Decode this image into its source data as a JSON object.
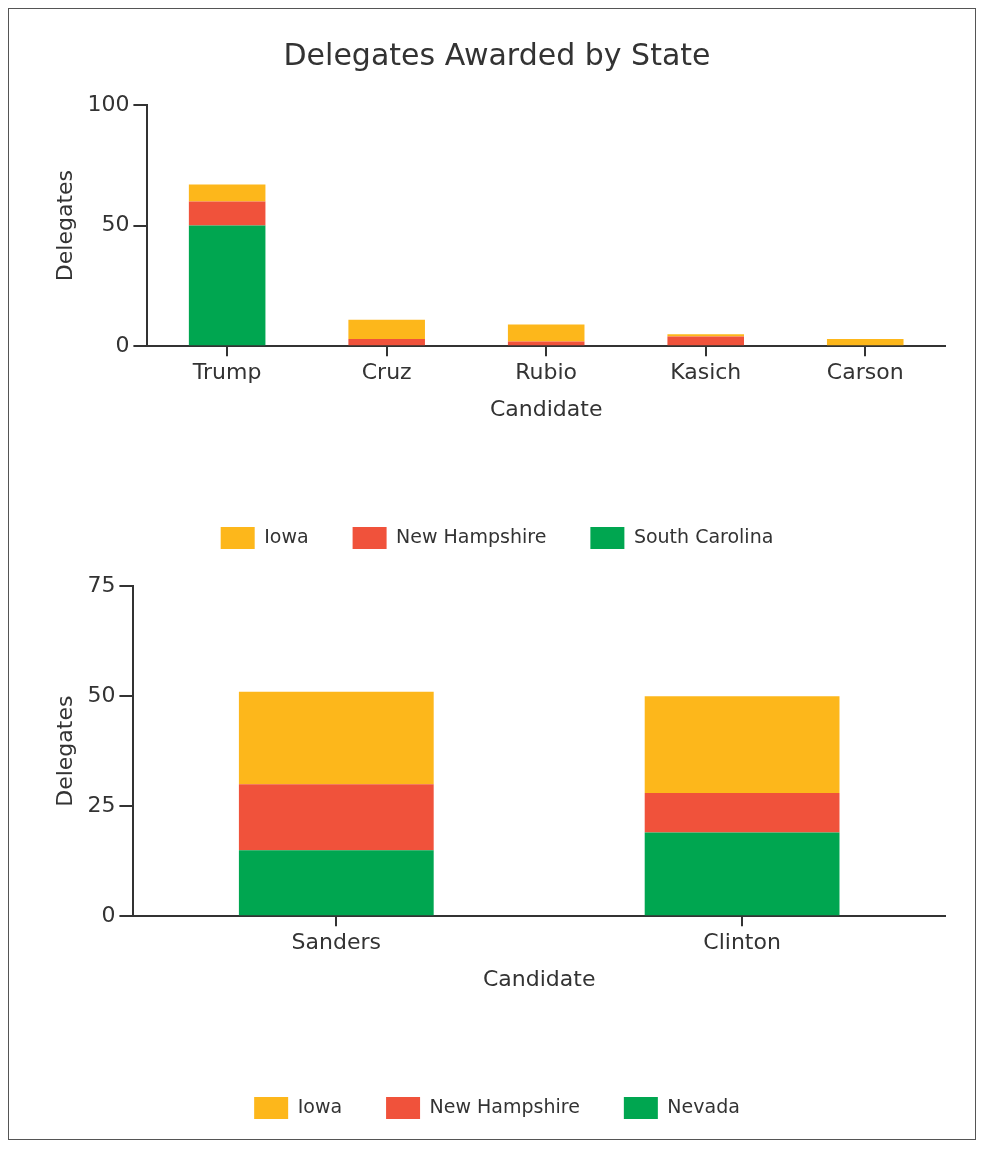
{
  "chart_data": [
    {
      "type": "bar",
      "title": "Delegates Awarded by State",
      "xlabel": "Candidate",
      "ylabel": "Delegates",
      "categories": [
        "Trump",
        "Cruz",
        "Rubio",
        "Kasich",
        "Carson"
      ],
      "stacked": true,
      "ylim": [
        0,
        100
      ],
      "yticks": [
        0,
        50,
        100
      ],
      "grid": false,
      "legend": "bottom",
      "series": [
        {
          "name": "South Carolina",
          "color": "#00a650",
          "values": [
            50,
            0,
            0,
            0,
            0
          ]
        },
        {
          "name": "New Hampshire",
          "color": "#f0523b",
          "values": [
            10,
            3,
            2,
            4,
            0
          ]
        },
        {
          "name": "Iowa",
          "color": "#fdb71b",
          "values": [
            7,
            8,
            7,
            1,
            3
          ]
        }
      ]
    },
    {
      "type": "bar",
      "xlabel": "Candidate",
      "ylabel": "Delegates",
      "categories": [
        "Sanders",
        "Clinton"
      ],
      "stacked": true,
      "ylim": [
        0,
        75
      ],
      "yticks": [
        0,
        25,
        50,
        75
      ],
      "grid": false,
      "legend": "bottom",
      "series": [
        {
          "name": "Nevada",
          "color": "#00a650",
          "values": [
            15,
            19
          ]
        },
        {
          "name": "New Hampshire",
          "color": "#f0523b",
          "values": [
            15,
            9
          ]
        },
        {
          "name": "Iowa",
          "color": "#fdb71b",
          "values": [
            21,
            22
          ]
        }
      ]
    }
  ]
}
